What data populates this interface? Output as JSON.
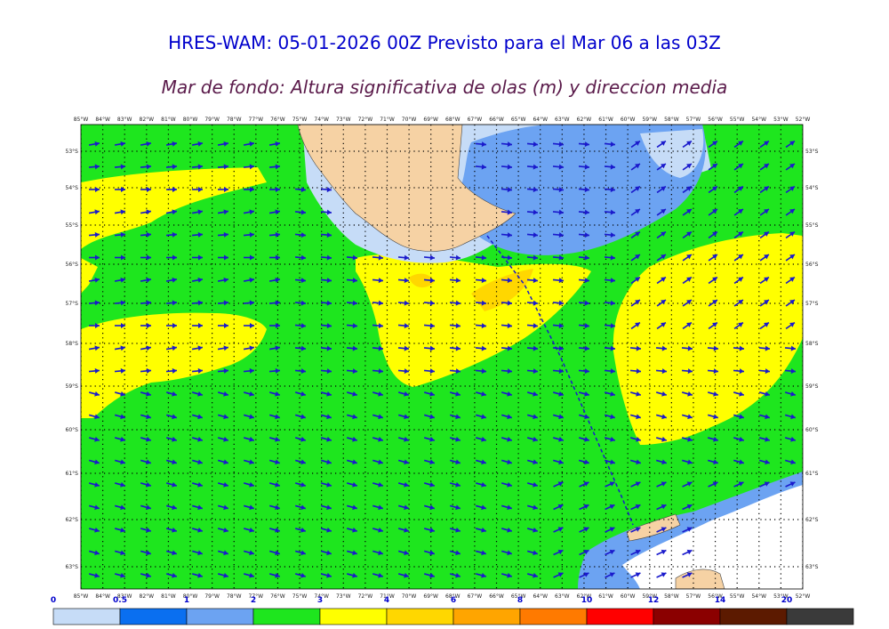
{
  "title": "HRES-WAM: 05-01-2026 00Z Previsto para el Mar 06 a las 03Z",
  "subtitle": "Mar de fondo: Altura significativa de olas (m) y direccion media",
  "longitudes": [
    "85°W",
    "84°W",
    "83°W",
    "82°W",
    "81°W",
    "80°W",
    "79°W",
    "78°W",
    "77°W",
    "76°W",
    "75°W",
    "74°W",
    "73°W",
    "72°W",
    "71°W",
    "70°W",
    "69°W",
    "68°W",
    "67°W",
    "66°W",
    "65°W",
    "64°W",
    "63°W",
    "62°W",
    "61°W",
    "60°W",
    "59°W",
    "58°W",
    "57°W",
    "56°W",
    "55°W",
    "54°W",
    "53°W",
    "52°W"
  ],
  "latitudes": [
    "53°S",
    "54°S",
    "55°S",
    "56°S",
    "57°S",
    "58°S",
    "59°S",
    "60°S",
    "61°S",
    "62°S",
    "63°S"
  ],
  "colorbar": {
    "labels": [
      "0",
      "0.5",
      "1",
      "2",
      "3",
      "4",
      "6",
      "8",
      "10",
      "12",
      "14",
      "20"
    ],
    "colors": [
      "#c6dcf7",
      "#0a6ff0",
      "#6ca3f2",
      "#1ee61e",
      "#ffff00",
      "#ffd700",
      "#ffa500",
      "#ff7a00",
      "#ff0000",
      "#8b0000",
      "#5c1a00",
      "#3a3a3a"
    ]
  },
  "colors": {
    "green": "#1ee61e",
    "yellow": "#ffff00",
    "gold": "#ffd700",
    "lightblue": "#c6dcf7",
    "blue": "#6ca3f2",
    "land": "#f6d2a4",
    "arrow": "#1a1acc"
  }
}
